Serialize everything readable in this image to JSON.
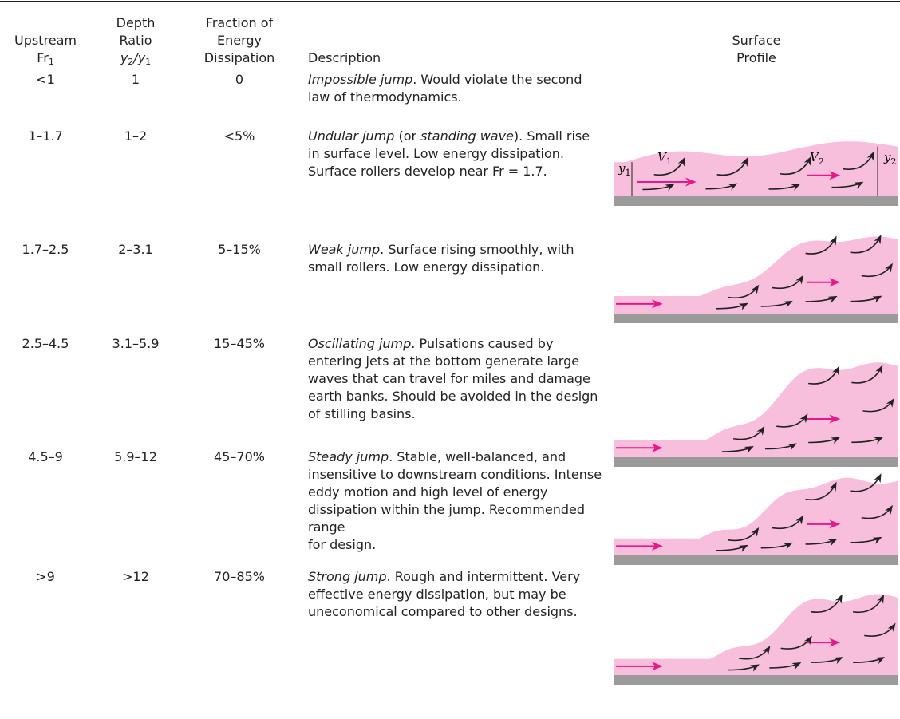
{
  "header": {
    "columns": [
      {
        "lines": [
          "Upstream"
        ],
        "main": "Fr",
        "sub": "1"
      },
      {
        "lines": [
          "Depth",
          "Ratio"
        ],
        "num": "y",
        "num_sub": "2",
        "slash": "/",
        "den": "y",
        "den_sub": "1"
      },
      {
        "lines": [
          "Fraction of",
          "Energy",
          "Dissipation"
        ]
      },
      {
        "lines": [
          "Description"
        ]
      },
      {
        "lines": [
          "Surface",
          "Profile"
        ]
      }
    ]
  },
  "rows": [
    {
      "fr": "<1",
      "ratio": "1",
      "fraction": "0",
      "description": [
        {
          "text": "Impossible jump",
          "italic": true
        },
        {
          "text": ". Would violate the second law of thermodynamics."
        }
      ]
    },
    {
      "fr": "1–1.7",
      "ratio": "1–2",
      "fraction": "<5%",
      "description": [
        {
          "text": "Undular jump",
          "italic": true
        },
        {
          "text": " (or "
        },
        {
          "text": "standing wave",
          "italic": true
        },
        {
          "text": "). Small rise in surface level. Low energy dissipation. Surface rollers develop near Fr = 1.7."
        }
      ],
      "profile_labels": [
        {
          "main": "y",
          "sub": "1"
        },
        {
          "main": "V",
          "sub": "1"
        },
        {
          "main": "V",
          "sub": "2"
        },
        {
          "main": "y",
          "sub": "2"
        }
      ]
    },
    {
      "fr": "1.7–2.5",
      "ratio": "2–3.1",
      "fraction": "5–15%",
      "description": [
        {
          "text": "Weak jump",
          "italic": true
        },
        {
          "text": ". Surface rising smoothly, with small rollers. Low energy dissipation."
        }
      ]
    },
    {
      "fr": "2.5–4.5",
      "ratio": "3.1–5.9",
      "fraction": "15–45%",
      "description": [
        {
          "text": "Oscillating jump",
          "italic": true
        },
        {
          "text": ". Pulsations caused by entering jets at the bottom generate large waves that can travel for miles and damage earth banks. Should be avoided in the design of stilling basins."
        }
      ]
    },
    {
      "fr": "4.5–9",
      "ratio": "5.9–12",
      "fraction": "45–70%",
      "description": [
        {
          "text": "Steady jump",
          "italic": true
        },
        {
          "text": ". Stable, well-balanced, and insensitive to downstream conditions. Intense eddy motion and high level of energy dissipation within the jump. Recommended range\nfor design."
        }
      ]
    },
    {
      "fr": ">9",
      "ratio": ">12",
      "fraction": "70–85%",
      "description": [
        {
          "text": "Strong jump",
          "italic": true
        },
        {
          "text": ". Rough and intermittent. Very effective energy dissipation, but may be uneconomical compared to other designs."
        }
      ]
    }
  ]
}
